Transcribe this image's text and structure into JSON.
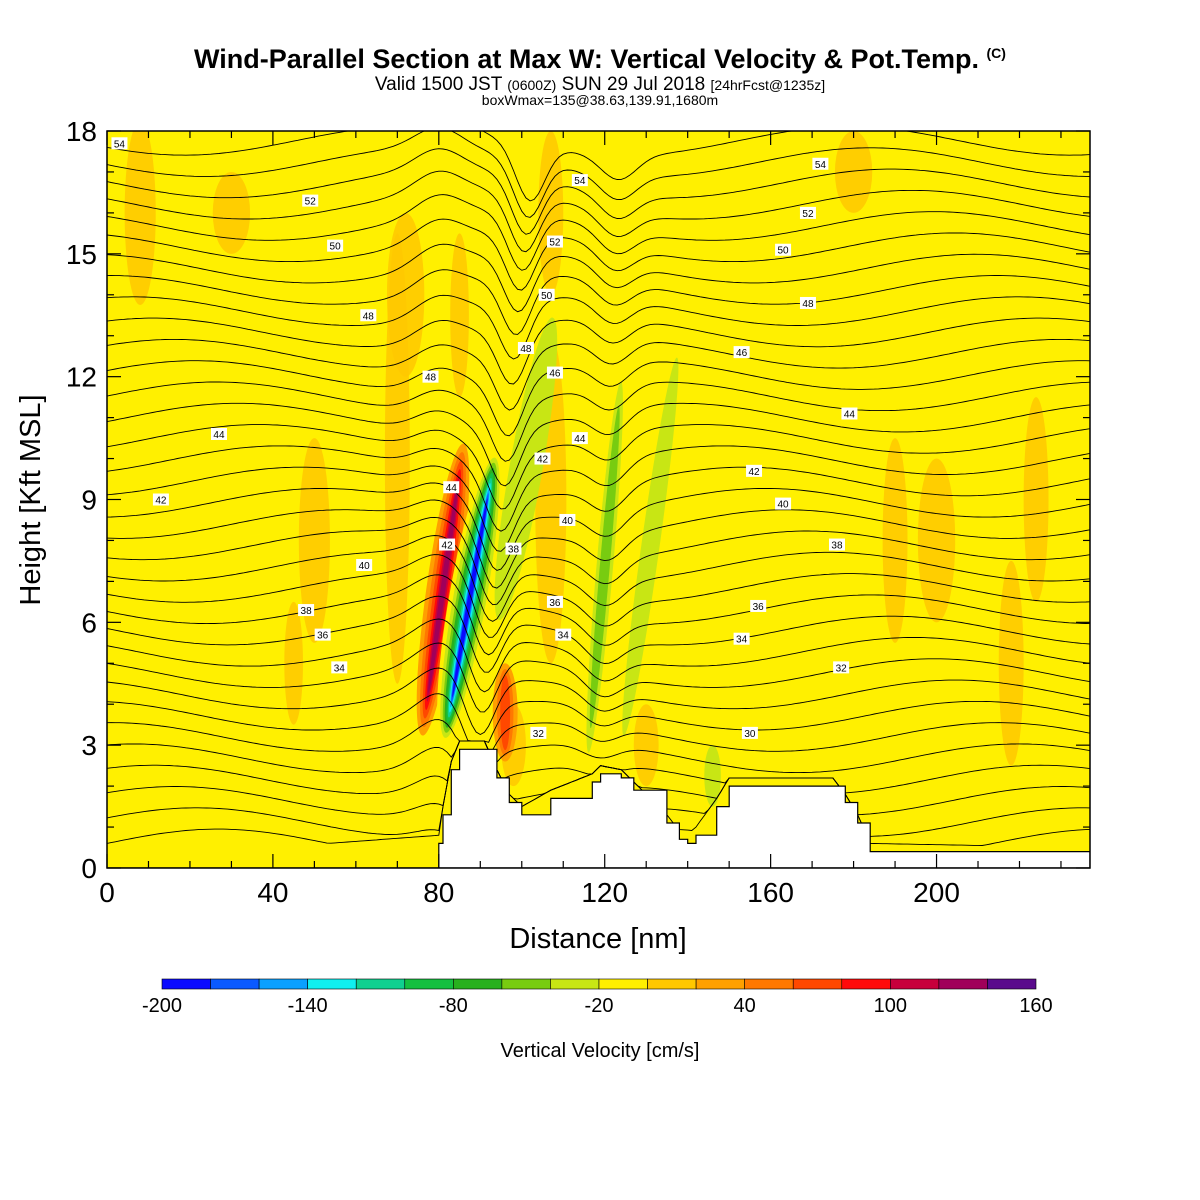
{
  "header": {
    "title": "Wind-Parallel Section at Max W: Vertical Velocity & Pot.Temp.",
    "title_mark": "(C)",
    "subtitle_main": "Valid 1500 JST",
    "subtitle_z": "(0600Z)",
    "subtitle_date": "SUN 29 Jul 2018",
    "subtitle_fcst": "[24hrFcst@1235z]",
    "boxline": "boxWmax=135@38.63,139.91,1680m"
  },
  "chart_data": {
    "type": "heatmap",
    "title": "Wind-Parallel Section at Max W: Vertical Velocity & Pot.Temp.",
    "xlabel": "Distance [nm]",
    "ylabel": "Height [Kft MSL]",
    "xlim": [
      0,
      237
    ],
    "ylim": [
      0,
      18
    ],
    "x_ticks": [
      "0",
      "40",
      "80",
      "120",
      "160",
      "200"
    ],
    "x_tick_values": [
      0,
      40,
      80,
      120,
      160,
      200
    ],
    "y_ticks": [
      "0",
      "3",
      "6",
      "9",
      "12",
      "15",
      "18"
    ],
    "y_tick_values": [
      0,
      3,
      6,
      9,
      12,
      15,
      18
    ],
    "grid": false,
    "colorbar": {
      "label": "Vertical Velocity [cm/s]",
      "tick_labels": [
        "-200",
        "-140",
        "-80",
        "-20",
        "40",
        "100",
        "160"
      ],
      "tick_values": [
        -200,
        -140,
        -80,
        -20,
        40,
        100,
        160
      ],
      "levels": [
        -200,
        -180,
        -160,
        -140,
        -120,
        -100,
        -80,
        -60,
        -40,
        -20,
        0,
        20,
        40,
        60,
        80,
        100,
        120,
        140,
        160
      ],
      "colors": [
        "#0a0aff",
        "#0a5aff",
        "#0aa0ff",
        "#10f0f0",
        "#10d090",
        "#14c040",
        "#28b01e",
        "#78cc10",
        "#c8e614",
        "#fff000",
        "#ffc800",
        "#ffa000",
        "#ff7800",
        "#ff4800",
        "#ff0a0a",
        "#c8003c",
        "#a0005a",
        "#5a0a8c"
      ],
      "position": "bottom"
    },
    "terrain_profile": {
      "x": [
        0,
        80,
        81,
        83,
        85,
        91,
        94,
        97,
        100,
        107,
        117,
        119,
        124,
        127,
        135,
        138,
        140,
        142,
        147,
        150,
        175,
        178,
        181,
        184,
        237
      ],
      "height": [
        0,
        0.6,
        1.3,
        2.4,
        2.9,
        2.9,
        2.2,
        1.6,
        1.3,
        1.7,
        2.1,
        2.3,
        2.2,
        1.9,
        1.1,
        0.7,
        0.6,
        0.8,
        1.5,
        2.0,
        2.0,
        1.6,
        1.1,
        0.4,
        0.3
      ]
    },
    "vertical_velocity_features": [
      {
        "x": 81,
        "z_range": [
          3,
          10.5
        ],
        "w": 120
      },
      {
        "x": 87.5,
        "z_range": [
          3,
          10
        ],
        "w": -200
      },
      {
        "x": 96,
        "z_range": [
          2.5,
          5
        ],
        "w": 60
      },
      {
        "x": 120,
        "z_range": [
          2,
          13
        ],
        "w": -60
      },
      {
        "x": 130,
        "z_range": [
          2,
          13.5
        ],
        "w": -30
      },
      {
        "x": 107,
        "z_range": [
          7,
          18
        ],
        "w": 40
      }
    ],
    "potential_temperature_labels": [
      {
        "text": "54",
        "x": 3,
        "z": 17.7
      },
      {
        "text": "52",
        "x": 49,
        "z": 16.3
      },
      {
        "text": "50",
        "x": 55,
        "z": 15.2
      },
      {
        "text": "48",
        "x": 63,
        "z": 13.5
      },
      {
        "text": "48",
        "x": 78,
        "z": 12.0
      },
      {
        "text": "44",
        "x": 27,
        "z": 10.6
      },
      {
        "text": "42",
        "x": 13,
        "z": 9.0
      },
      {
        "text": "40",
        "x": 62,
        "z": 7.4
      },
      {
        "text": "38",
        "x": 48,
        "z": 6.3
      },
      {
        "text": "36",
        "x": 52,
        "z": 5.7
      },
      {
        "text": "34",
        "x": 56,
        "z": 4.9
      },
      {
        "text": "44",
        "x": 83,
        "z": 9.3
      },
      {
        "text": "42",
        "x": 82,
        "z": 7.9
      },
      {
        "text": "54",
        "x": 114,
        "z": 16.8
      },
      {
        "text": "52",
        "x": 108,
        "z": 15.3
      },
      {
        "text": "50",
        "x": 106,
        "z": 14.0
      },
      {
        "text": "48",
        "x": 101,
        "z": 12.7
      },
      {
        "text": "46",
        "x": 108,
        "z": 12.1
      },
      {
        "text": "44",
        "x": 114,
        "z": 10.5
      },
      {
        "text": "42",
        "x": 105,
        "z": 10.0
      },
      {
        "text": "40",
        "x": 111,
        "z": 8.5
      },
      {
        "text": "38",
        "x": 98,
        "z": 7.8
      },
      {
        "text": "36",
        "x": 108,
        "z": 6.5
      },
      {
        "text": "34",
        "x": 110,
        "z": 5.7
      },
      {
        "text": "32",
        "x": 104,
        "z": 3.3
      },
      {
        "text": "54",
        "x": 172,
        "z": 17.2
      },
      {
        "text": "52",
        "x": 169,
        "z": 16.0
      },
      {
        "text": "50",
        "x": 163,
        "z": 15.1
      },
      {
        "text": "48",
        "x": 169,
        "z": 13.8
      },
      {
        "text": "46",
        "x": 153,
        "z": 12.6
      },
      {
        "text": "44",
        "x": 179,
        "z": 11.1
      },
      {
        "text": "42",
        "x": 156,
        "z": 9.7
      },
      {
        "text": "40",
        "x": 163,
        "z": 8.9
      },
      {
        "text": "38",
        "x": 176,
        "z": 7.9
      },
      {
        "text": "36",
        "x": 157,
        "z": 6.4
      },
      {
        "text": "34",
        "x": 153,
        "z": 5.6
      },
      {
        "text": "32",
        "x": 177,
        "z": 4.9
      },
      {
        "text": "30",
        "x": 155,
        "z": 3.3
      }
    ]
  }
}
